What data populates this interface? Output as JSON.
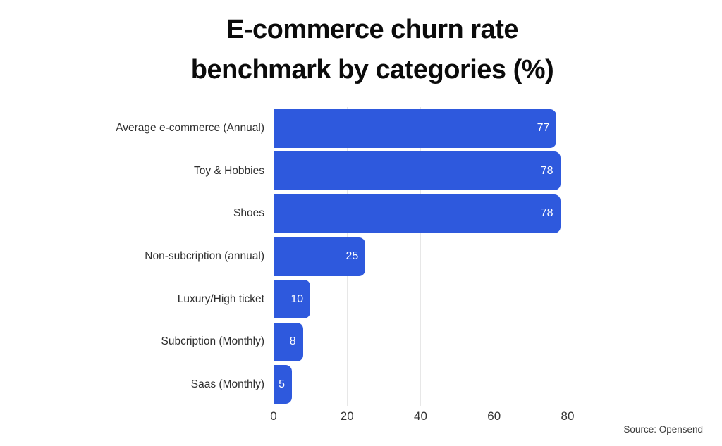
{
  "title": {
    "line1": "E-commerce churn rate",
    "line2": "benchmark by categories (%)"
  },
  "source": "Source: Opensend",
  "colors": {
    "bar": "#2e59dd",
    "gridline": "#e7e7e7",
    "value_label": "#ffffff",
    "category_label": "#2e2e2e",
    "tick_label": "#333333",
    "title": "#0b0b0b",
    "background": "#ffffff"
  },
  "chart_data": {
    "type": "bar",
    "orientation": "horizontal",
    "title": "E-commerce churn rate benchmark by categories (%)",
    "categories": [
      "Average e-commerce (Annual)",
      "Toy & Hobbies",
      "Shoes",
      "Non-subcription (annual)",
      "Luxury/High ticket",
      "Subcription (Monthly)",
      "Saas (Monthly)"
    ],
    "values": [
      77,
      78,
      78,
      25,
      10,
      8,
      5
    ],
    "xlabel": "",
    "ylabel": "",
    "xlim": [
      0,
      80
    ],
    "xticks": [
      0,
      20,
      40,
      60,
      80
    ],
    "grid": true,
    "legend": false,
    "value_labels": "inside-end",
    "source": "Source: Opensend"
  }
}
